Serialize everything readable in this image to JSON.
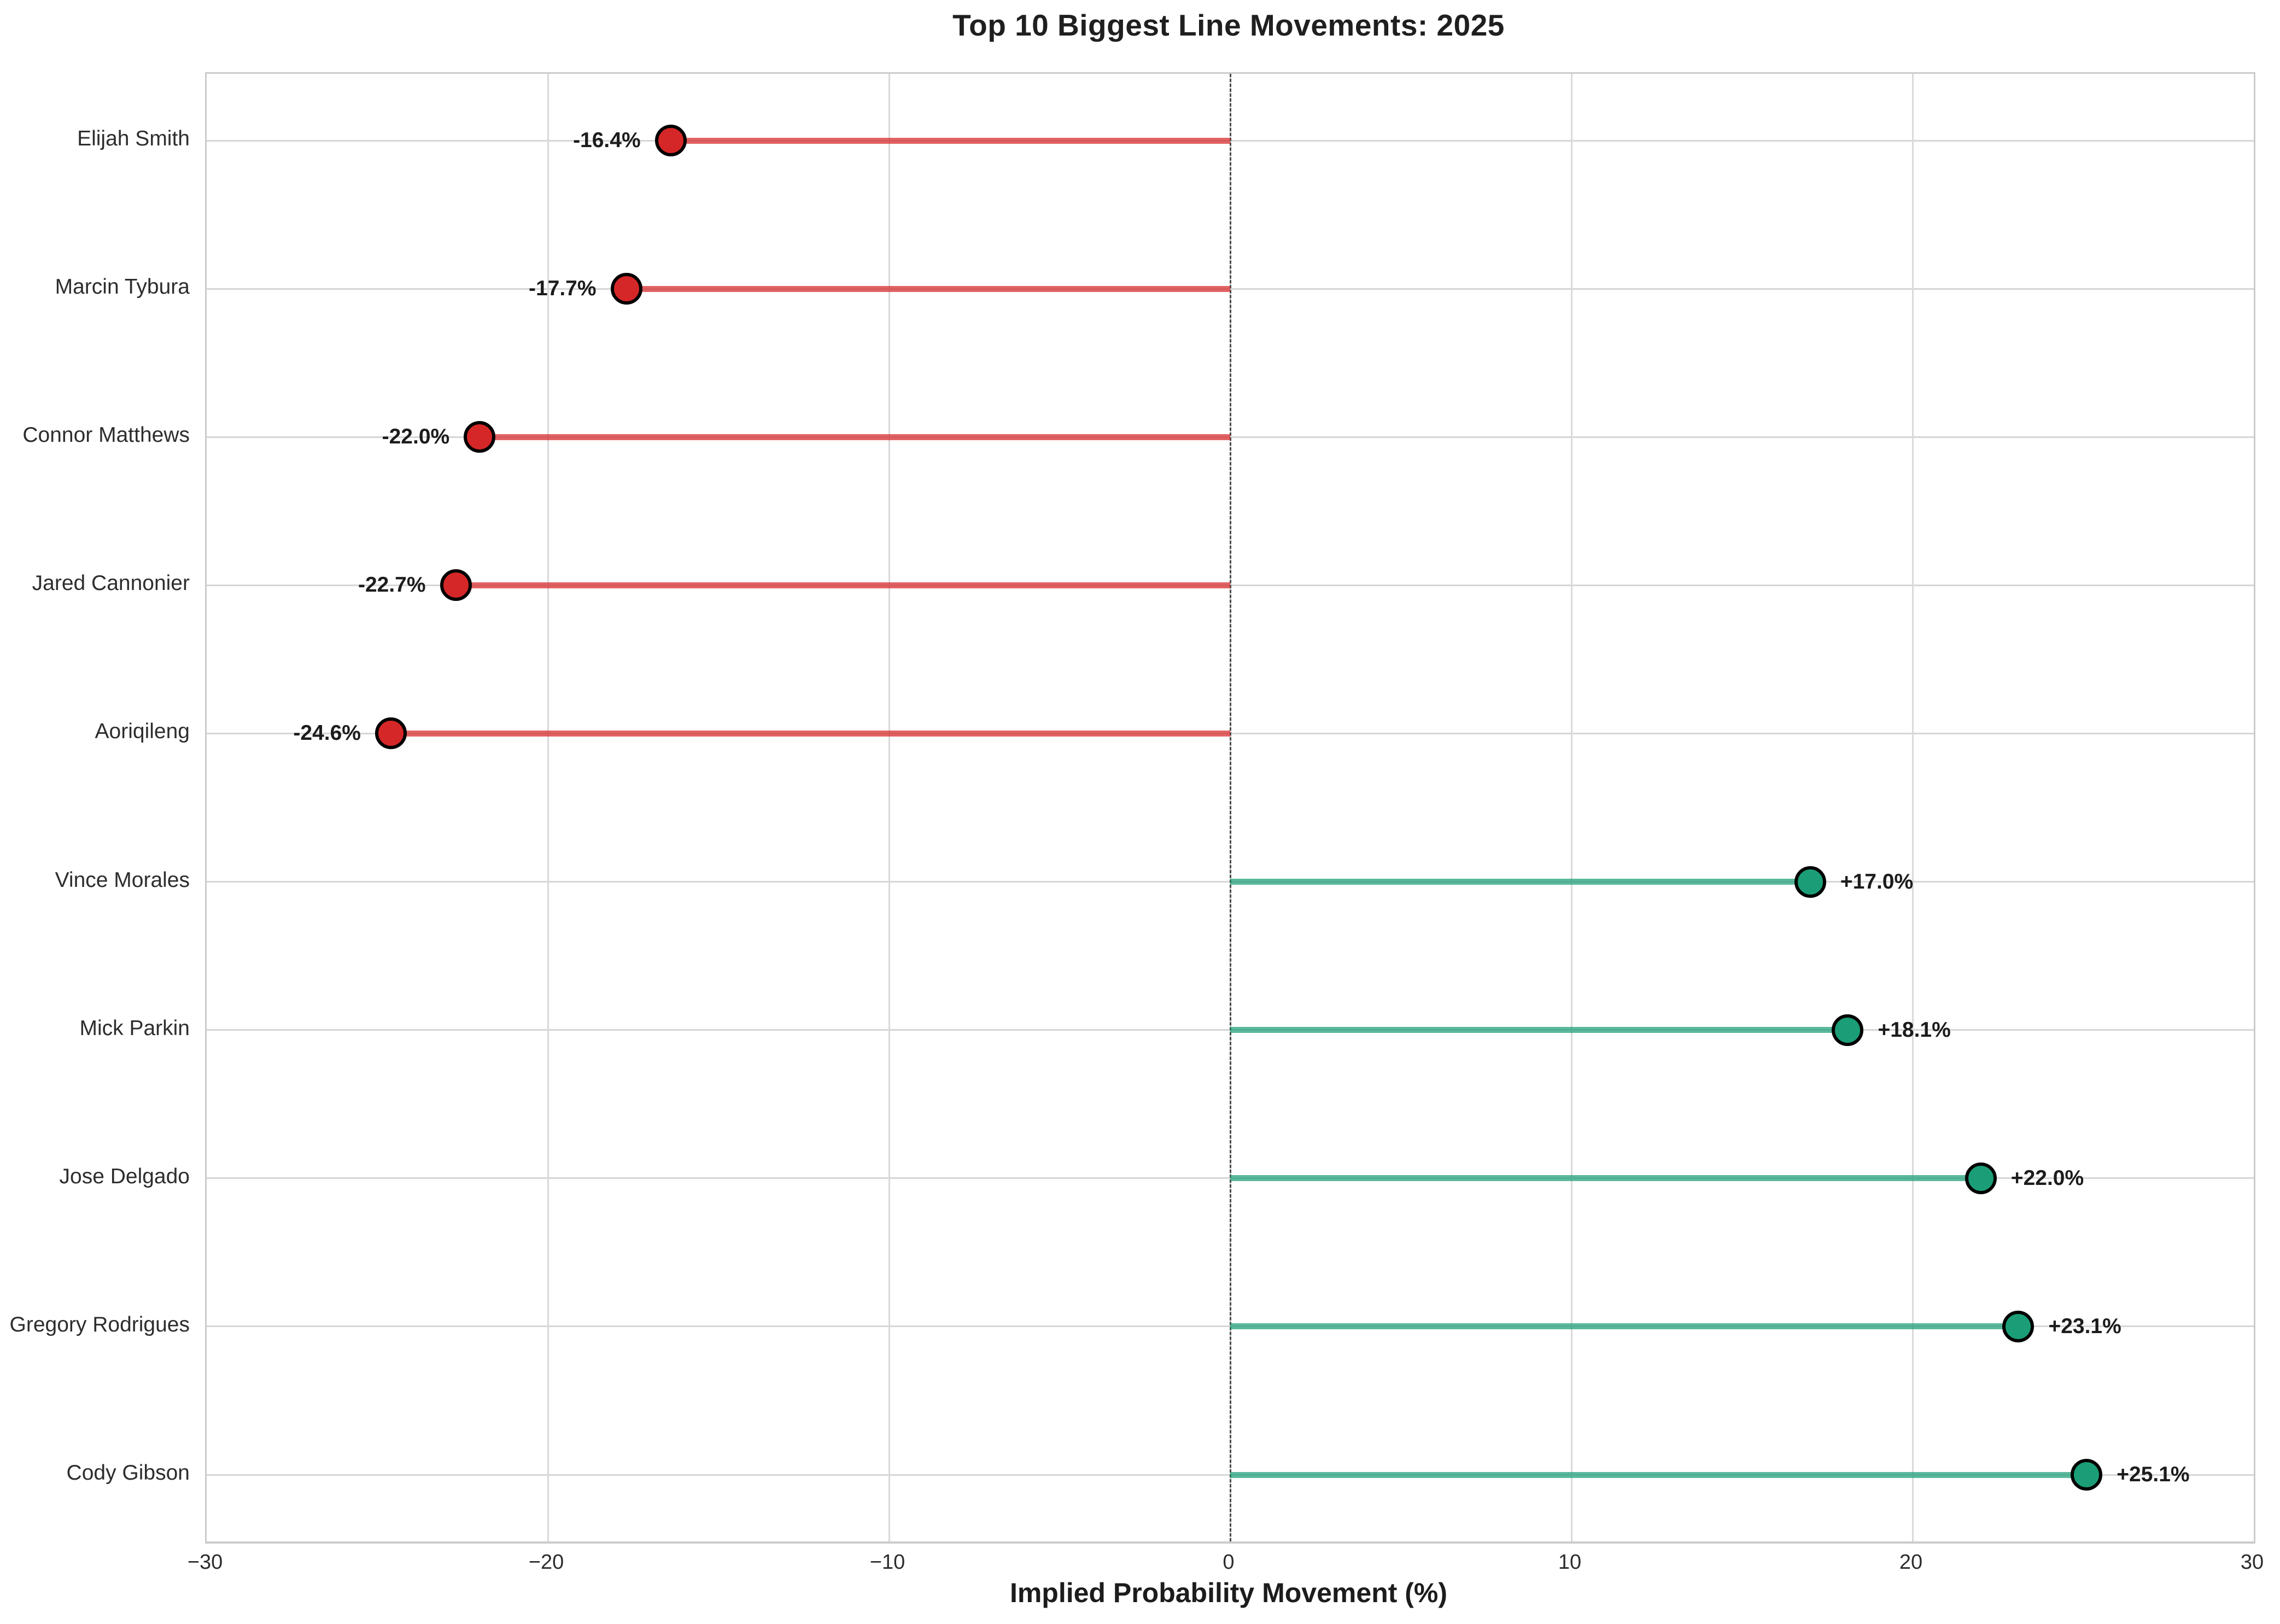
{
  "chart_data": {
    "type": "bar",
    "style": "horizontal-lollipop",
    "title": "Top 10 Biggest Line Movements: 2025",
    "xlabel": "Implied Probability Movement (%)",
    "ylabel": "",
    "xlim": [
      -30,
      30
    ],
    "xtick_values": [
      -30,
      -20,
      -10,
      0,
      10,
      20,
      30
    ],
    "xtick_labels": [
      "−30",
      "−20",
      "−10",
      "0",
      "10",
      "20",
      "30"
    ],
    "grid": true,
    "zero_line": true,
    "legend": "none",
    "categories": [
      "Elijah Smith",
      "Marcin Tybura",
      "Connor Matthews",
      "Jared Cannonier",
      "Aoriqileng",
      "Vince Morales",
      "Mick Parkin",
      "Jose Delgado",
      "Gregory Rodrigues",
      "Cody Gibson"
    ],
    "values": [
      -16.4,
      -17.7,
      -22.0,
      -22.7,
      -24.6,
      17.0,
      18.1,
      22.0,
      23.1,
      25.1
    ],
    "value_labels": [
      "-16.4%",
      "-17.7%",
      "-22.0%",
      "-22.7%",
      "-24.6%",
      "+17.0%",
      "+18.1%",
      "+22.0%",
      "+23.1%",
      "+25.1%"
    ],
    "colors": {
      "negative_marker": "#d62728",
      "negative_stem": "rgba(214,39,40,0.72)",
      "positive_marker": "#1b9e77",
      "positive_stem": "rgba(27,158,119,0.72)",
      "marker_edge": "#000000",
      "gridline": "#d6d6d6",
      "zero_line": "#4a4a4a",
      "text": "#1c1c1c"
    }
  }
}
